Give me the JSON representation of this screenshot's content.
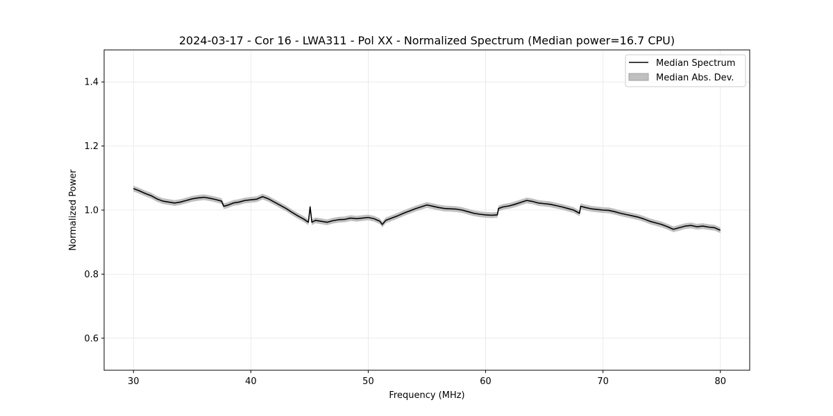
{
  "chart_data": {
    "type": "line",
    "title": "2024-03-17 - Cor 16 - LWA311 - Pol XX - Normalized Spectrum (Median power=16.7 CPU)",
    "xlabel": "Frequency (MHz)",
    "ylabel": "Normalized Power",
    "xlim": [
      27.5,
      82.5
    ],
    "ylim": [
      0.5,
      1.5
    ],
    "xticks": [
      30,
      40,
      50,
      60,
      70,
      80
    ],
    "yticks": [
      0.6,
      0.8,
      1.0,
      1.2,
      1.4
    ],
    "xtick_labels": [
      "30",
      "40",
      "50",
      "60",
      "70",
      "80"
    ],
    "ytick_labels": [
      "0.6",
      "0.8",
      "1.0",
      "1.2",
      "1.4"
    ],
    "grid": true,
    "legend_position": "top-right",
    "colors": {
      "line": "#000000",
      "band": "#c0c0c0"
    },
    "series": [
      {
        "name": "Median Spectrum",
        "kind": "line",
        "x": [
          30.0,
          30.5,
          31.0,
          31.5,
          32.0,
          32.5,
          33.0,
          33.5,
          34.0,
          34.5,
          35.0,
          35.5,
          36.0,
          36.5,
          37.0,
          37.5,
          37.7,
          38.0,
          38.5,
          39.0,
          39.5,
          40.0,
          40.5,
          41.0,
          41.5,
          42.0,
          42.5,
          43.0,
          43.5,
          44.0,
          44.5,
          44.9,
          45.05,
          45.2,
          45.5,
          46.0,
          46.5,
          47.0,
          47.5,
          48.0,
          48.5,
          49.0,
          49.5,
          50.0,
          50.5,
          51.0,
          51.2,
          51.5,
          52.0,
          52.5,
          53.0,
          53.5,
          54.0,
          54.5,
          55.0,
          55.5,
          56.0,
          56.5,
          57.0,
          57.5,
          58.0,
          58.5,
          59.0,
          59.5,
          60.0,
          60.5,
          61.0,
          61.1,
          61.5,
          62.0,
          62.5,
          63.0,
          63.5,
          64.0,
          64.5,
          65.0,
          65.5,
          66.0,
          66.5,
          67.0,
          67.5,
          68.0,
          68.1,
          68.5,
          69.0,
          69.5,
          70.0,
          70.5,
          71.0,
          71.5,
          72.0,
          72.5,
          73.0,
          73.5,
          74.0,
          74.5,
          75.0,
          75.5,
          76.0,
          76.5,
          77.0,
          77.5,
          78.0,
          78.5,
          79.0,
          79.5,
          80.0
        ],
        "values": [
          1.067,
          1.06,
          1.052,
          1.045,
          1.035,
          1.028,
          1.025,
          1.022,
          1.025,
          1.03,
          1.035,
          1.038,
          1.04,
          1.037,
          1.033,
          1.028,
          1.012,
          1.015,
          1.022,
          1.025,
          1.03,
          1.032,
          1.034,
          1.042,
          1.035,
          1.025,
          1.015,
          1.005,
          0.993,
          0.982,
          0.972,
          0.962,
          1.01,
          0.962,
          0.968,
          0.965,
          0.962,
          0.967,
          0.97,
          0.971,
          0.975,
          0.973,
          0.975,
          0.977,
          0.973,
          0.965,
          0.955,
          0.968,
          0.975,
          0.982,
          0.99,
          0.997,
          1.004,
          1.01,
          1.016,
          1.012,
          1.008,
          1.005,
          1.004,
          1.003,
          1.0,
          0.995,
          0.99,
          0.987,
          0.985,
          0.984,
          0.985,
          1.005,
          1.01,
          1.013,
          1.018,
          1.024,
          1.03,
          1.027,
          1.022,
          1.02,
          1.018,
          1.014,
          1.01,
          1.005,
          1.0,
          0.99,
          1.012,
          1.008,
          1.004,
          1.002,
          1.0,
          0.999,
          0.995,
          0.99,
          0.986,
          0.982,
          0.978,
          0.972,
          0.965,
          0.96,
          0.955,
          0.948,
          0.94,
          0.945,
          0.95,
          0.952,
          0.948,
          0.95,
          0.947,
          0.945,
          0.937
        ]
      },
      {
        "name": "Median Abs. Dev.",
        "kind": "band",
        "halfwidth": 0.009
      }
    ]
  }
}
